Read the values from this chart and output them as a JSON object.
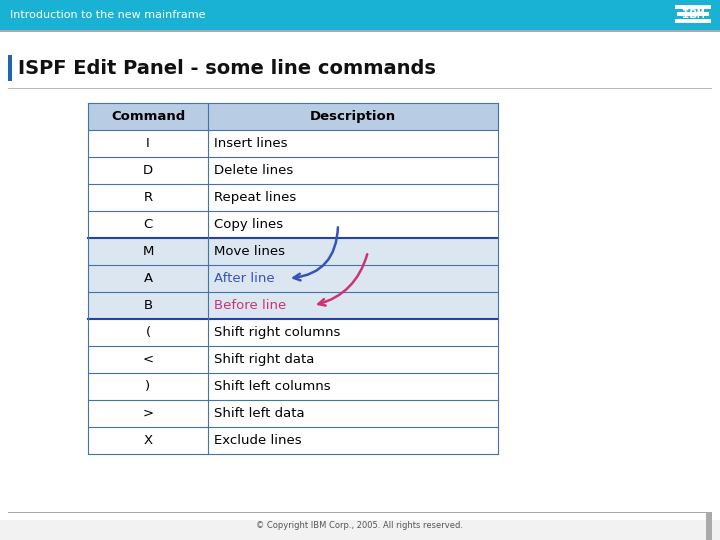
{
  "title": "ISPF Edit Panel - some line commands",
  "header_bar_text": "Introduction to the new mainframe",
  "header_bar_color": "#1ab2d4",
  "title_accent_color": "#1a6aad",
  "slide_bg": "#f4f4f4",
  "copyright": "© Copyright IBM Corp., 2005. All rights reserved.",
  "commands": [
    "I",
    "D",
    "R",
    "C",
    "M",
    "A",
    "B",
    "(",
    "<",
    ")",
    ">",
    "X"
  ],
  "descriptions": [
    "Insert lines",
    "Delete lines",
    "Repeat lines",
    "Copy lines",
    "Move lines",
    "After line",
    "Before line",
    "Shift right columns",
    "Shift right data",
    "Shift left columns",
    "Shift left data",
    "Exclude lines"
  ],
  "desc_colors": [
    "#000000",
    "#000000",
    "#000000",
    "#000000",
    "#000000",
    "#3355bb",
    "#cc3377",
    "#000000",
    "#000000",
    "#000000",
    "#000000",
    "#000000"
  ],
  "header_row_bg": "#b8cce4",
  "row_bg": "#ffffff",
  "highlighted_row_bg": "#dce6f1",
  "table_border_color": "#4472aa",
  "table_border_thick": "#2244aa",
  "arrow_blue": "#3355bb",
  "arrow_pink": "#cc3377"
}
